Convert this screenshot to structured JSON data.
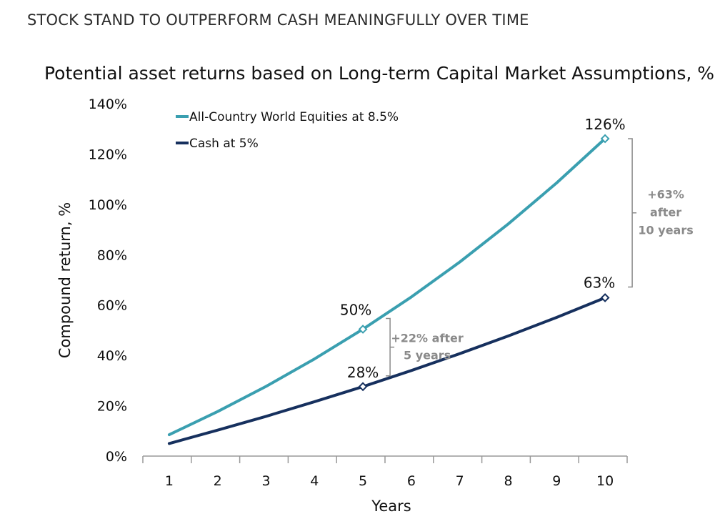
{
  "header": "STOCK STAND TO OUTPERFORM CASH MEANINGFULLY OVER TIME",
  "chart_data": {
    "type": "line",
    "title": "Potential asset returns based on Long-term Capital Market Assumptions, %",
    "xlabel": "Years",
    "ylabel": "Compound return, %",
    "x": [
      1,
      2,
      3,
      4,
      5,
      6,
      7,
      8,
      9,
      10
    ],
    "ylim": [
      0,
      140
    ],
    "yticks": [
      "0%",
      "20%",
      "40%",
      "60%",
      "80%",
      "100%",
      "120%",
      "140%"
    ],
    "xticks": [
      "1",
      "2",
      "3",
      "4",
      "5",
      "6",
      "7",
      "8",
      "9",
      "10"
    ],
    "grid": false,
    "legend_position": "top-left",
    "series": [
      {
        "name": "All-Country World Equities at 8.5%",
        "color": "#3a9fb0",
        "values": [
          8.5,
          17.7,
          27.7,
          38.6,
          50.4,
          63.2,
          77.1,
          92.2,
          108.5,
          126.1
        ],
        "markers": [
          {
            "x": 5,
            "label": "50%"
          },
          {
            "x": 10,
            "label": "126%"
          }
        ]
      },
      {
        "name": "Cash at 5%",
        "color": "#16305e",
        "values": [
          5.0,
          10.3,
          15.8,
          21.6,
          27.6,
          34.0,
          40.7,
          47.7,
          55.1,
          62.9
        ],
        "markers": [
          {
            "x": 5,
            "label": "28%"
          },
          {
            "x": 10,
            "label": "63%"
          }
        ]
      }
    ],
    "annotations": [
      {
        "x": 5,
        "lines": [
          "+22% after",
          "5 years"
        ]
      },
      {
        "x": 10,
        "lines": [
          "+63%",
          "after",
          "10 years"
        ]
      }
    ]
  }
}
